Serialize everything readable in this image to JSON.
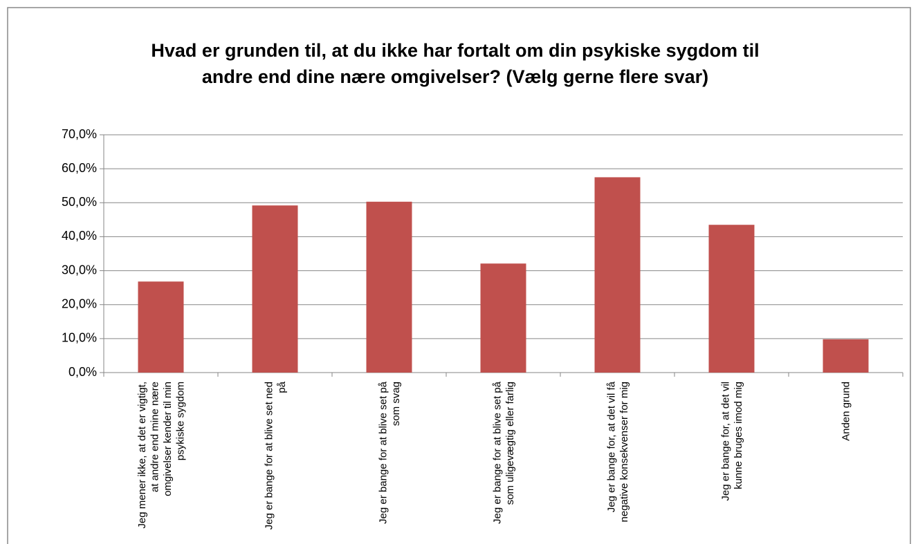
{
  "chart_data": {
    "type": "bar",
    "title": "Hvad er grunden til, at du ikke har fortalt om din psykiske sygdom til andre end dine nære omgivelser? (Vælg gerne flere svar)",
    "categories": [
      "Jeg mener ikke, at det er vigtigt, at andre end mine nære omgivelser kender til min psykiske sygdom",
      "Jeg er bange for at blive set ned på",
      "Jeg er bange for at blive set på som svag",
      "Jeg er bange for at blive set på som uligevægtig eller farlig",
      "Jeg er bange for, at det vil få negative konsekvenser for mig",
      "Jeg er bange for, at det vil kunne bruges imod mig",
      "Anden grund"
    ],
    "values": [
      26.8,
      49.2,
      50.3,
      32.1,
      57.5,
      43.5,
      9.8
    ],
    "color": "#c0504d",
    "ylim": [
      0,
      70
    ],
    "yticks": [
      {
        "value": 0,
        "label": "0,0%"
      },
      {
        "value": 10,
        "label": "10,0%"
      },
      {
        "value": 20,
        "label": "20,0%"
      },
      {
        "value": 30,
        "label": "30,0%"
      },
      {
        "value": 40,
        "label": "40,0%"
      },
      {
        "value": 50,
        "label": "50,0%"
      },
      {
        "value": 60,
        "label": "60,0%"
      },
      {
        "value": 70,
        "label": "70,0%"
      }
    ],
    "grid": true
  }
}
